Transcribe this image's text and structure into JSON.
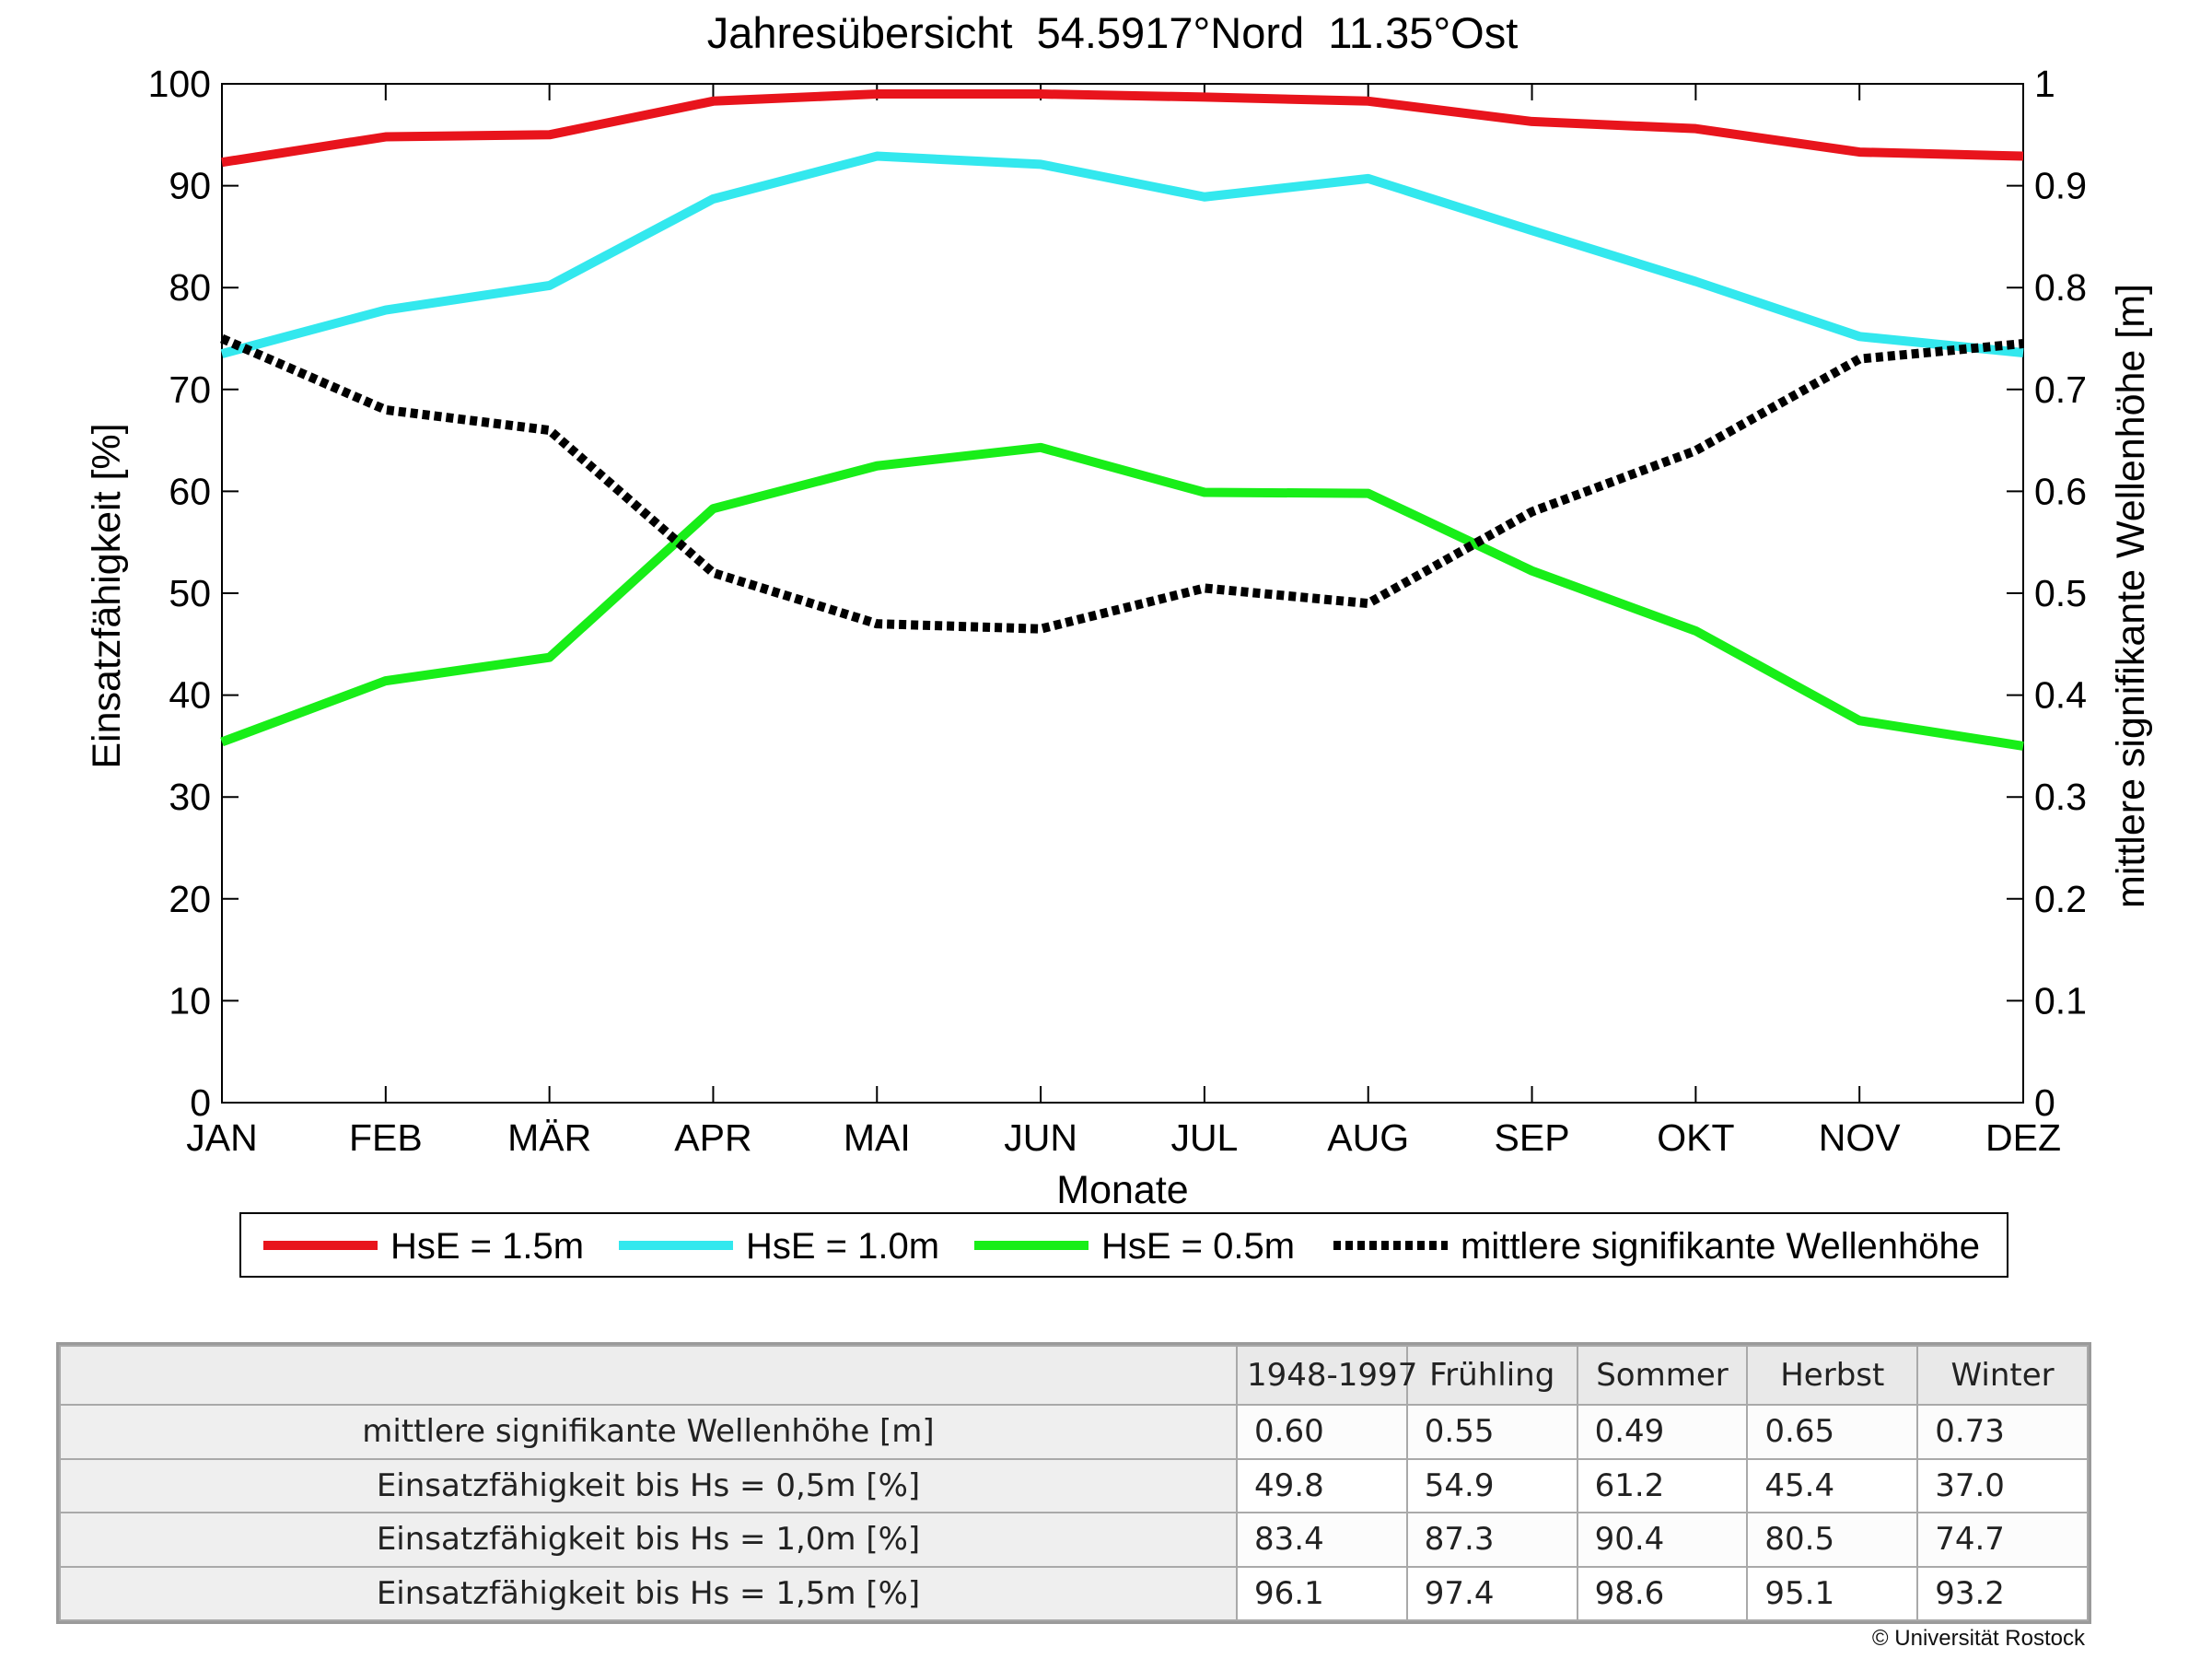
{
  "chart_data": {
    "type": "line",
    "title": "Jahresübersicht  54.5917°Nord  11.35°Ost",
    "xlabel": "Monate",
    "ylabel_left": "Einsatzfähigkeit [%]",
    "ylabel_right": "mittlere signifikante Wellenhöhe [m]",
    "categories": [
      "JAN",
      "FEB",
      "MÄR",
      "APR",
      "MAI",
      "JUN",
      "JUL",
      "AUG",
      "SEP",
      "OKT",
      "NOV",
      "DEZ"
    ],
    "ylim_left": [
      0,
      100
    ],
    "yticks_left": [
      0,
      10,
      20,
      30,
      40,
      50,
      60,
      70,
      80,
      90,
      100
    ],
    "ylim_right": [
      0,
      1
    ],
    "yticks_right": [
      "0",
      "0.1",
      "0.2",
      "0.3",
      "0.4",
      "0.5",
      "0.6",
      "0.7",
      "0.8",
      "0.9",
      "1"
    ],
    "grid": false,
    "legend_position": "bottom",
    "series": [
      {
        "name": "HsE = 1.5m",
        "axis": "left",
        "color": "#e8141c",
        "style": "solid",
        "values": [
          92.3,
          94.8,
          95.0,
          98.3,
          99.0,
          99.0,
          98.7,
          98.3,
          96.3,
          95.6,
          93.3,
          92.9
        ]
      },
      {
        "name": "HsE = 1.0m",
        "axis": "left",
        "color": "#33e8ee",
        "style": "solid",
        "values": [
          73.5,
          77.8,
          80.2,
          88.7,
          92.9,
          92.1,
          88.9,
          90.7,
          85.6,
          80.6,
          75.2,
          73.6
        ]
      },
      {
        "name": "HsE = 0.5m",
        "axis": "left",
        "color": "#18ee18",
        "style": "solid",
        "values": [
          35.4,
          41.4,
          43.7,
          58.3,
          62.5,
          64.3,
          59.9,
          59.8,
          52.2,
          46.3,
          37.5,
          35.0
        ]
      },
      {
        "name": "mittlere signifikante Wellenhöhe",
        "axis": "right",
        "color": "#000000",
        "style": "dotted",
        "values": [
          0.75,
          0.68,
          0.66,
          0.52,
          0.47,
          0.465,
          0.505,
          0.49,
          0.58,
          0.64,
          0.73,
          0.745
        ]
      }
    ]
  },
  "summary_table": {
    "columns": [
      "1948-1997",
      "Frühling",
      "Sommer",
      "Herbst",
      "Winter"
    ],
    "rows": [
      {
        "label": "mittlere signifikante Wellenhöhe [m]",
        "values": [
          "0.60",
          "0.55",
          "0.49",
          "0.65",
          "0.73"
        ]
      },
      {
        "label": "Einsatzfähigkeit bis Hs = 0,5m [%]",
        "values": [
          "49.8",
          "54.9",
          "61.2",
          "45.4",
          "37.0"
        ]
      },
      {
        "label": "Einsatzfähigkeit bis Hs = 1,0m [%]",
        "values": [
          "83.4",
          "87.3",
          "90.4",
          "80.5",
          "74.7"
        ]
      },
      {
        "label": "Einsatzfähigkeit bis Hs = 1,5m [%]",
        "values": [
          "96.1",
          "97.4",
          "98.6",
          "95.1",
          "93.2"
        ]
      }
    ]
  },
  "copyright": "© Universität Rostock"
}
